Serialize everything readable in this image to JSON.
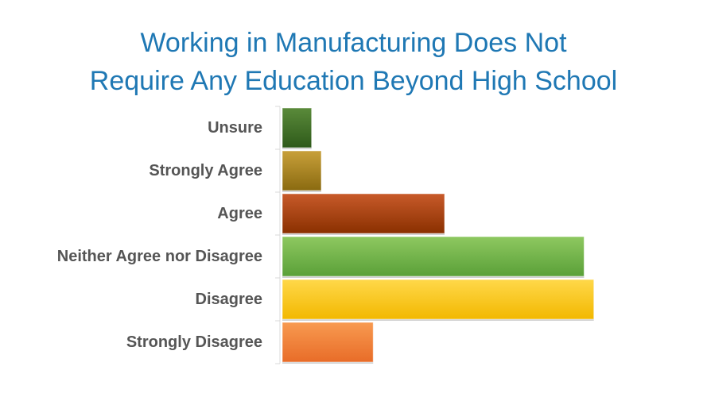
{
  "chart_data": {
    "type": "bar",
    "orientation": "horizontal",
    "title_lines": [
      "Working in Manufacturing Does Not",
      "Require Any Education Beyond High School"
    ],
    "categories": [
      "Unsure",
      "Strongly Agree",
      "Agree",
      "Neither Agree nor Disagree",
      "Disagree",
      "Strongly Disagree"
    ],
    "values": [
      9,
      12,
      50,
      93,
      96,
      28
    ],
    "xlim": [
      0,
      100
    ],
    "grid": false,
    "legend": "none",
    "colors": [
      [
        "#5a8a3a",
        "#2e5a1a"
      ],
      [
        "#c8a03a",
        "#8a6a10"
      ],
      [
        "#c85a2a",
        "#8a3000"
      ],
      [
        "#8ec860",
        "#5aa038"
      ],
      [
        "#ffd84a",
        "#f2b800"
      ],
      [
        "#f89a50",
        "#e86c28"
      ]
    ]
  }
}
